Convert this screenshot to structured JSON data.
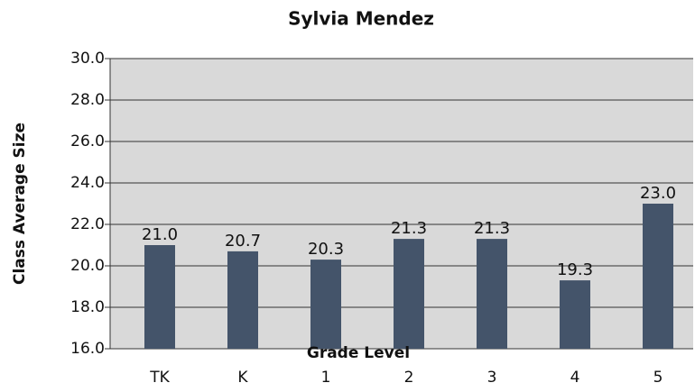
{
  "chart_data": {
    "type": "bar",
    "title": "Sylvia Mendez",
    "x_label": "Grade Level",
    "y_label": "Class Average Size",
    "categories": [
      "TK",
      "K",
      "1",
      "2",
      "3",
      "4",
      "5"
    ],
    "values": [
      21.0,
      20.7,
      20.3,
      21.3,
      21.3,
      19.3,
      23.0
    ],
    "value_labels": [
      "21.0",
      "20.7",
      "20.3",
      "21.3",
      "21.3",
      "19.3",
      "23.0"
    ],
    "color": "#44546a",
    "ylim": [
      16,
      30
    ],
    "yticks": [
      {
        "value": 16,
        "label": "16.0"
      },
      {
        "value": 18,
        "label": "18.0"
      },
      {
        "value": 20,
        "label": "20.0"
      },
      {
        "value": 22,
        "label": "22.0"
      },
      {
        "value": 24,
        "label": "24.0"
      },
      {
        "value": 26,
        "label": "26.0"
      },
      {
        "value": 28,
        "label": "28.0"
      },
      {
        "value": 30,
        "label": "30.0"
      }
    ],
    "grid": true
  }
}
